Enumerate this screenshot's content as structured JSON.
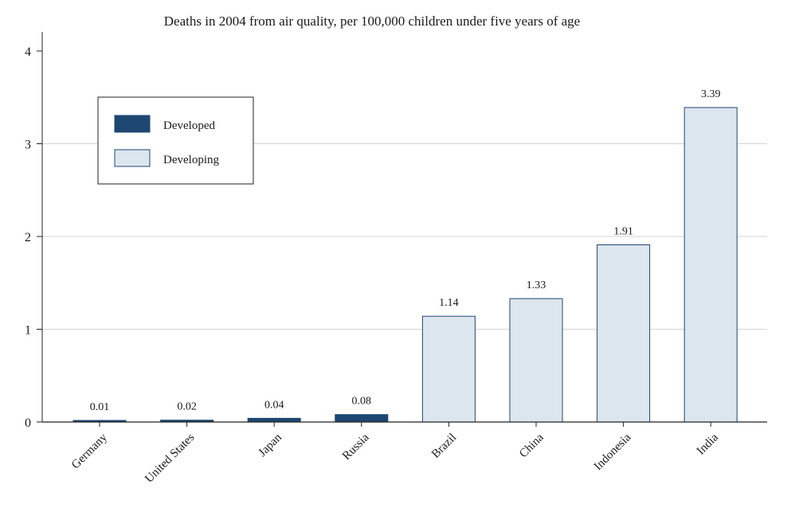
{
  "chart_data": {
    "type": "bar",
    "title": "Deaths in 2004 from air quality, per 100,000 children under five years of age",
    "xlabel": "",
    "ylabel": "",
    "ylim": [
      0,
      4
    ],
    "yticks": [
      0,
      1,
      2,
      3,
      4
    ],
    "grid": true,
    "legend_position": "top-left",
    "categories": [
      "Germany",
      "United States",
      "Japan",
      "Russia",
      "Brazil",
      "China",
      "Indonesia",
      "India"
    ],
    "values": [
      0.01,
      0.02,
      0.04,
      0.08,
      1.14,
      1.33,
      1.91,
      3.39
    ],
    "data_labels": [
      "0.01",
      "0.02",
      "0.04",
      "0.08",
      "1.14",
      "1.33",
      "1.91",
      "3.39"
    ],
    "groups": [
      "Developed",
      "Developed",
      "Developed",
      "Developed",
      "Developing",
      "Developing",
      "Developing",
      "Developing"
    ],
    "legend": [
      {
        "label": "Developed",
        "color": "#1d4771"
      },
      {
        "label": "Developing",
        "color": "#dce6ee"
      }
    ],
    "colors": {
      "developed_fill": "#1d4771",
      "developing_fill": "#dce6ee",
      "bar_stroke": "#1d4771",
      "grid": "#d4d4d4",
      "axis": "#222222"
    }
  }
}
